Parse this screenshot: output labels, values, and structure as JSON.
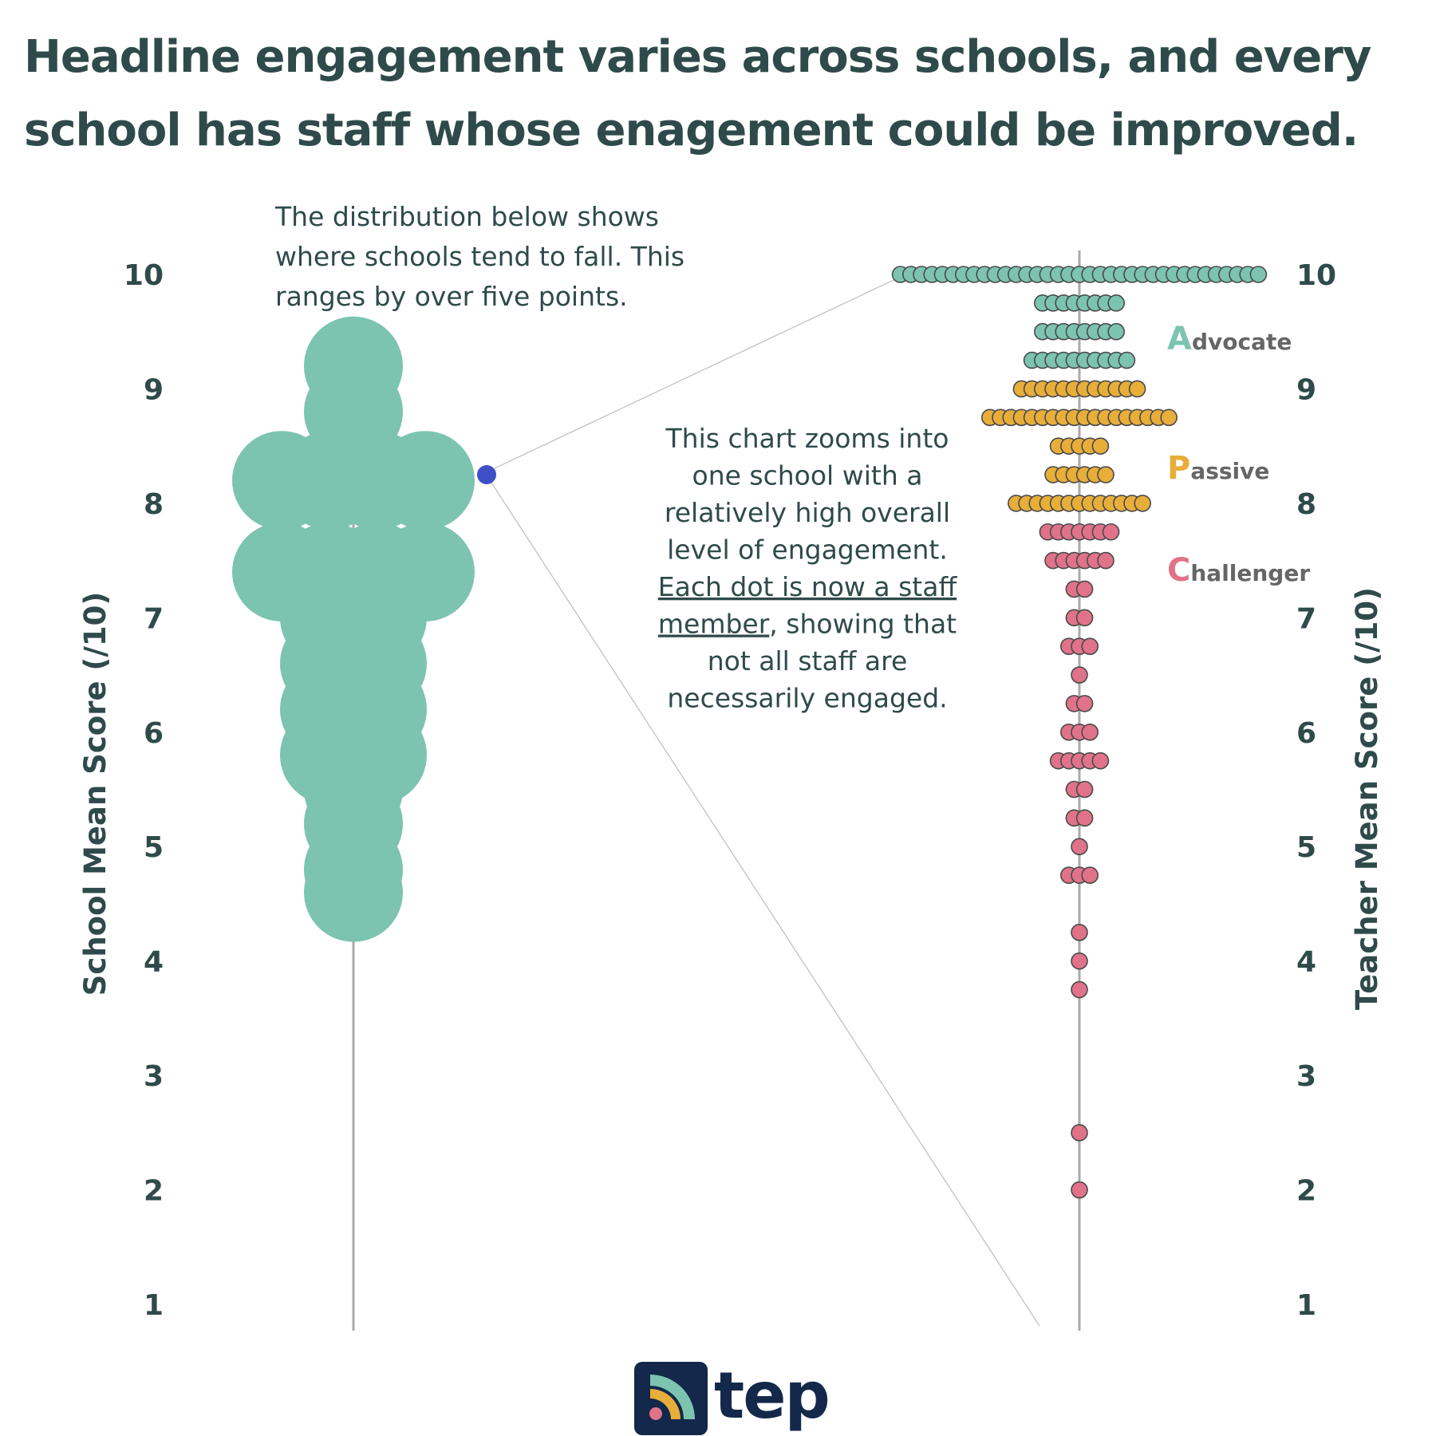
{
  "title": "Headline engagement varies across schools, and every school has staff whose enagement could be improved.",
  "annotations": {
    "distribution": [
      "The distribution below shows",
      "where schools tend to fall. This",
      "ranges by over five points."
    ],
    "zoom": [
      "This chart zooms into",
      "one school with a",
      "relatively high overall",
      "level of engagement."
    ],
    "zoom_underlined": [
      "Each dot is now a staff",
      "member"
    ],
    "zoom_tail": [
      ", showing that",
      "not all staff are",
      "necessarily engaged."
    ]
  },
  "segments": [
    {
      "initial": "A",
      "rest": "dvocate",
      "color": "#7cc4b0"
    },
    {
      "initial": "P",
      "rest": "assive",
      "color": "#e8ae3a"
    },
    {
      "initial": "C",
      "rest": "hallenger",
      "color": "#e07389"
    }
  ],
  "logo": {
    "text": "tep"
  },
  "colors": {
    "advocate": "#7cc4b0",
    "passive": "#e8ae3a",
    "challenger": "#e07389",
    "highlight": "#3f4fc8",
    "text": "#2f4a4a"
  },
  "chart_data": [
    {
      "type": "scatter",
      "subtype": "beeswarm",
      "ylabel": "School Mean Score (/10)",
      "ylim": [
        1,
        10
      ],
      "yticks": [
        1,
        2,
        3,
        4,
        5,
        6,
        7,
        8,
        9,
        10
      ],
      "rows": [
        {
          "y": 9.2,
          "count": 1
        },
        {
          "y": 8.8,
          "count": 1
        },
        {
          "y": 8.2,
          "count": 4
        },
        {
          "y": 7.4,
          "count": 4
        },
        {
          "y": 7.0,
          "count": 2
        },
        {
          "y": 6.6,
          "count": 2
        },
        {
          "y": 6.2,
          "count": 2
        },
        {
          "y": 5.8,
          "count": 2
        },
        {
          "y": 5.5,
          "count": 1
        },
        {
          "y": 5.2,
          "count": 1
        },
        {
          "y": 4.8,
          "count": 1
        },
        {
          "y": 4.6,
          "count": 1
        }
      ],
      "highlighted_school": {
        "y": 8.25
      }
    },
    {
      "type": "scatter",
      "subtype": "beeswarm",
      "ylabel": "Teacher Mean Score (/10)",
      "ylim": [
        1,
        10
      ],
      "yticks": [
        1,
        2,
        3,
        4,
        5,
        6,
        7,
        8,
        9,
        10
      ],
      "series": [
        {
          "name": "Advocate",
          "rows": [
            {
              "y": 10.0,
              "count": 35
            },
            {
              "y": 9.75,
              "count": 8
            },
            {
              "y": 9.5,
              "count": 8
            },
            {
              "y": 9.25,
              "count": 10
            }
          ]
        },
        {
          "name": "Passive",
          "rows": [
            {
              "y": 9.0,
              "count": 12
            },
            {
              "y": 8.75,
              "count": 18
            },
            {
              "y": 8.5,
              "count": 5
            },
            {
              "y": 8.25,
              "count": 6
            },
            {
              "y": 8.0,
              "count": 13
            }
          ]
        },
        {
          "name": "Challenger",
          "rows": [
            {
              "y": 7.75,
              "count": 7
            },
            {
              "y": 7.5,
              "count": 6
            },
            {
              "y": 7.25,
              "count": 2
            },
            {
              "y": 7.0,
              "count": 2
            },
            {
              "y": 6.75,
              "count": 3
            },
            {
              "y": 6.5,
              "count": 1
            },
            {
              "y": 6.25,
              "count": 2
            },
            {
              "y": 6.0,
              "count": 3
            },
            {
              "y": 5.75,
              "count": 5
            },
            {
              "y": 5.5,
              "count": 2
            },
            {
              "y": 5.25,
              "count": 2
            },
            {
              "y": 5.0,
              "count": 1
            },
            {
              "y": 4.75,
              "count": 3
            },
            {
              "y": 4.25,
              "count": 1
            },
            {
              "y": 4.0,
              "count": 1
            },
            {
              "y": 3.75,
              "count": 1
            },
            {
              "y": 2.5,
              "count": 1
            },
            {
              "y": 2.0,
              "count": 1
            }
          ]
        }
      ]
    }
  ]
}
